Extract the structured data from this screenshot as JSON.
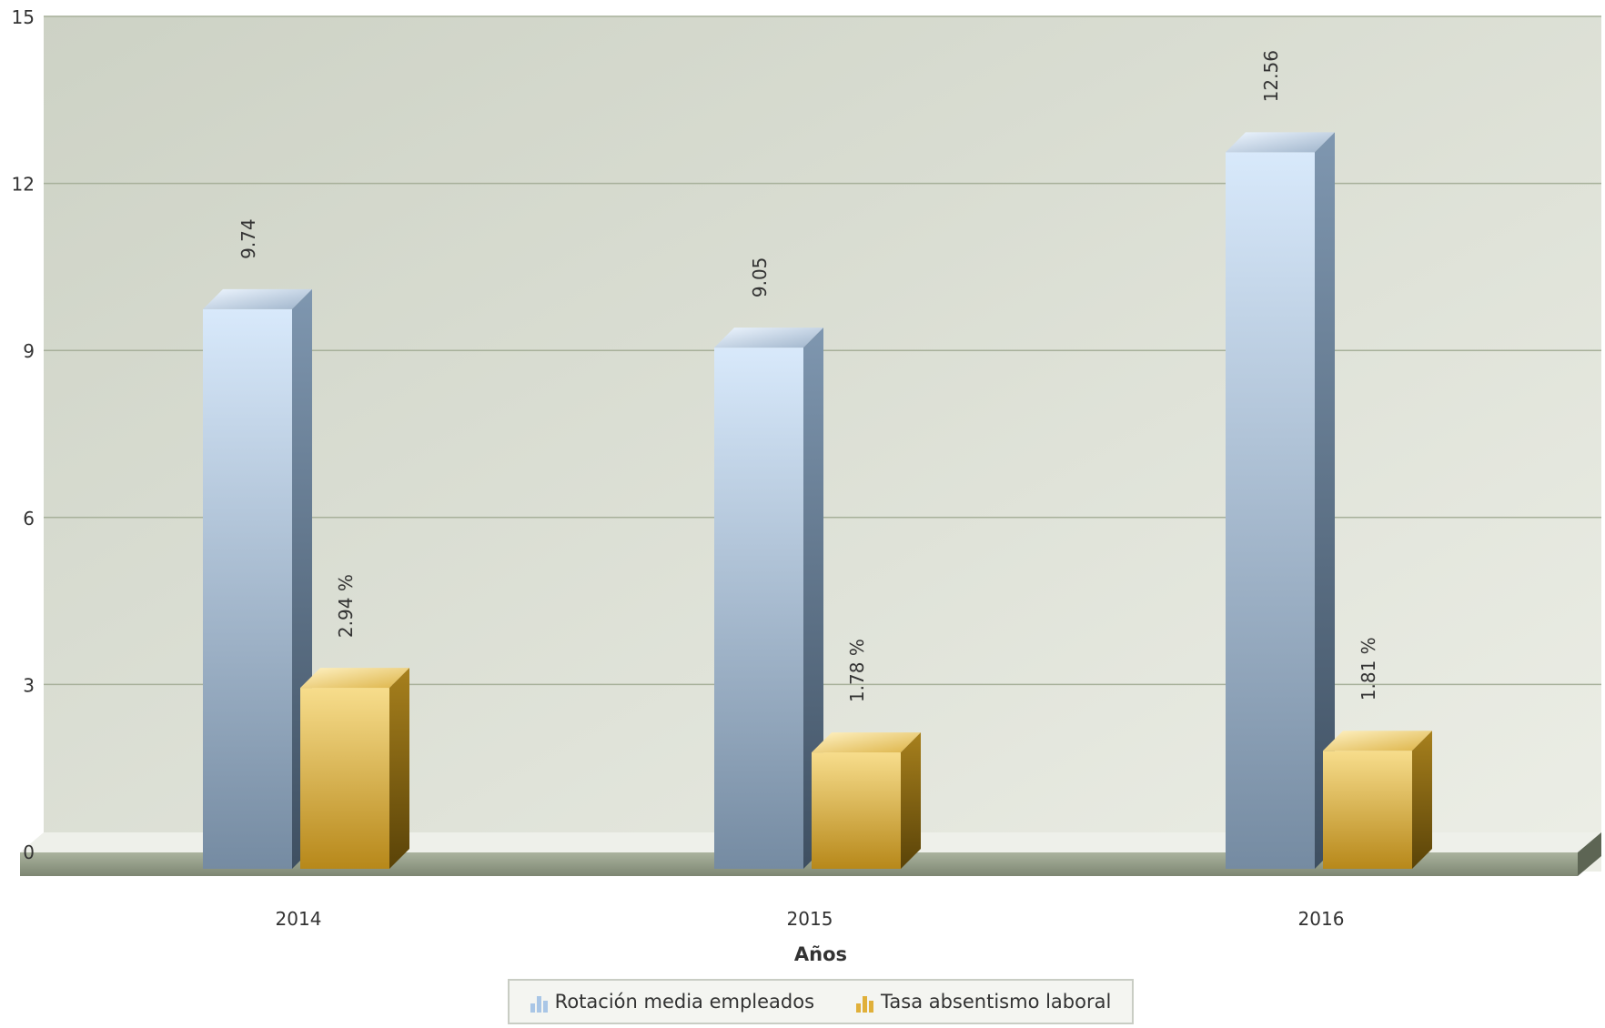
{
  "chart_data": {
    "type": "bar",
    "categories": [
      "2014",
      "2015",
      "2016"
    ],
    "series": [
      {
        "name": "Rotación media empleados",
        "values": [
          9.74,
          9.05,
          12.56
        ],
        "labels": [
          "9.74",
          "9.05",
          "12.56"
        ]
      },
      {
        "name": "Tasa absentismo laboral",
        "values": [
          2.94,
          1.78,
          1.81
        ],
        "labels": [
          "2.94 %",
          "1.78 %",
          "1.81 %"
        ]
      }
    ],
    "xlabel": "Años",
    "ylabel": "",
    "ylim": [
      0,
      15
    ],
    "yticks": [
      "0",
      "3",
      "6",
      "9",
      "12",
      "15"
    ],
    "grid": true,
    "legend_position": "bottom",
    "colors": {
      "series_1": "#9db4cc",
      "series_2": "#d8a83a",
      "plot_background": "#dcdfd4",
      "gridline": "#a7b09a"
    }
  }
}
